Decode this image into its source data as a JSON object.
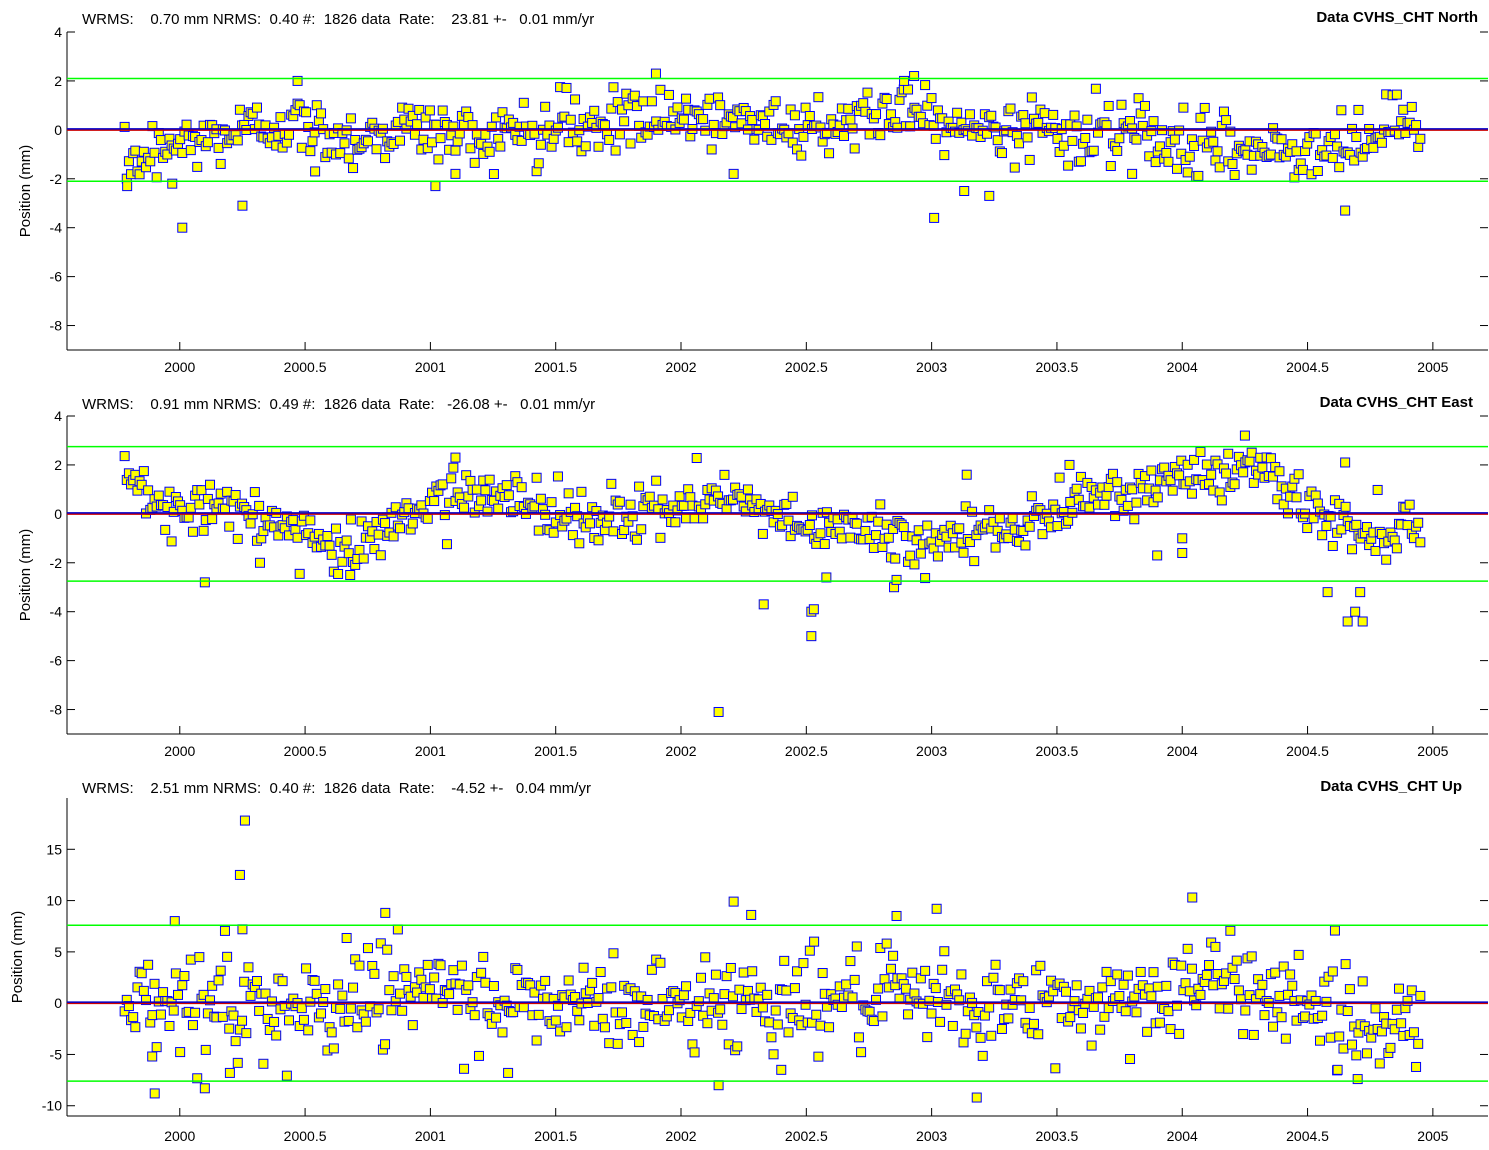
{
  "chart_data": [
    {
      "type": "scatter",
      "title": "Data CVHS_CHT North",
      "stats_text": "WRMS:    0.70 mm NRMS:  0.40 #:  1826 data  Rate:    23.81 +-   0.01 mm/yr",
      "ylabel": "Position (mm)",
      "xlim": [
        1999.55,
        2005.22
      ],
      "ylim": [
        -9,
        4
      ],
      "xticks": [
        2000,
        2000.5,
        2001,
        2001.5,
        2002,
        2002.5,
        2003,
        2003.5,
        2004,
        2004.5,
        2005
      ],
      "xtick_labels": [
        "2000",
        "2000.5",
        "2001",
        "2001.5",
        "2002",
        "2002.5",
        "2003",
        "2003.5",
        "2004",
        "2004.5",
        "2005"
      ],
      "yticks": [
        4,
        2,
        0,
        -2,
        -4,
        -6,
        -8
      ],
      "ytick_labels": [
        "4",
        "2",
        "0",
        "-2",
        "-4",
        "-6",
        "-8"
      ],
      "threshold_lines": [
        2.1,
        -2.1
      ],
      "zero_line": 0,
      "noise_sd": 0.62,
      "trend": [
        [
          1999.78,
          -1.6
        ],
        [
          1999.9,
          -0.8
        ],
        [
          2000.1,
          -0.4
        ],
        [
          2000.4,
          0.3
        ],
        [
          2000.7,
          -0.4
        ],
        [
          2000.9,
          0.1
        ],
        [
          2001.2,
          -0.3
        ],
        [
          2001.5,
          0.2
        ],
        [
          2001.8,
          0.4
        ],
        [
          2002.1,
          0.4
        ],
        [
          2002.5,
          0.2
        ],
        [
          2002.95,
          0.9
        ],
        [
          2003.15,
          0.1
        ],
        [
          2003.6,
          0.0
        ],
        [
          2003.9,
          -0.3
        ],
        [
          2004.3,
          -0.9
        ],
        [
          2004.6,
          -0.9
        ],
        [
          2004.95,
          0.3
        ]
      ],
      "outliers": [
        [
          1999.79,
          -2.3
        ],
        [
          1999.97,
          -2.2
        ],
        [
          2000.01,
          -4.0
        ],
        [
          2000.25,
          -3.1
        ],
        [
          2000.47,
          2.0
        ],
        [
          2000.54,
          -1.7
        ],
        [
          2001.02,
          -2.3
        ],
        [
          2001.1,
          -1.8
        ],
        [
          2001.9,
          2.3
        ],
        [
          2002.21,
          -1.8
        ],
        [
          2002.93,
          2.2
        ],
        [
          2002.89,
          2.0
        ],
        [
          2003.01,
          -3.6
        ],
        [
          2003.13,
          -2.5
        ],
        [
          2003.23,
          -2.7
        ],
        [
          2003.8,
          -1.8
        ],
        [
          2004.65,
          -3.3
        ]
      ]
    },
    {
      "type": "scatter",
      "title": "Data CVHS_CHT East",
      "stats_text": "WRMS:    0.91 mm NRMS:  0.49 #:  1826 data  Rate:   -26.08 +-   0.01 mm/yr",
      "ylabel": "Position (mm)",
      "xlim": [
        1999.55,
        2005.22
      ],
      "ylim": [
        -9,
        4
      ],
      "xticks": [
        2000,
        2000.5,
        2001,
        2001.5,
        2002,
        2002.5,
        2003,
        2003.5,
        2004,
        2004.5,
        2005
      ],
      "xtick_labels": [
        "2000",
        "2000.5",
        "2001",
        "2001.5",
        "2002",
        "2002.5",
        "2003",
        "2003.5",
        "2004",
        "2004.5",
        "2005"
      ],
      "yticks": [
        4,
        2,
        0,
        -2,
        -4,
        -6,
        -8
      ],
      "ytick_labels": [
        "4",
        "2",
        "0",
        "-2",
        "-4",
        "-6",
        "-8"
      ],
      "threshold_lines": [
        2.75,
        -2.75
      ],
      "zero_line": 0,
      "noise_sd": 0.55,
      "trend": [
        [
          1999.78,
          1.6
        ],
        [
          1999.95,
          0.5
        ],
        [
          2000.2,
          0.0
        ],
        [
          2000.5,
          -0.8
        ],
        [
          2000.7,
          -1.5
        ],
        [
          2000.85,
          -0.2
        ],
        [
          2001.1,
          0.9
        ],
        [
          2001.3,
          1.0
        ],
        [
          2001.45,
          0.1
        ],
        [
          2001.7,
          -0.3
        ],
        [
          2002.0,
          0.3
        ],
        [
          2002.2,
          0.5
        ],
        [
          2002.5,
          -0.5
        ],
        [
          2002.8,
          -0.8
        ],
        [
          2002.95,
          -1.1
        ],
        [
          2003.15,
          -0.8
        ],
        [
          2003.45,
          -0.3
        ],
        [
          2003.65,
          0.6
        ],
        [
          2003.9,
          1.4
        ],
        [
          2004.15,
          1.6
        ],
        [
          2004.3,
          2.0
        ],
        [
          2004.45,
          0.6
        ],
        [
          2004.7,
          -0.8
        ],
        [
          2004.95,
          -0.4
        ]
      ],
      "outliers": [
        [
          2000.1,
          -2.8
        ],
        [
          2000.32,
          -2.0
        ],
        [
          2000.68,
          -2.5
        ],
        [
          2001.1,
          2.3
        ],
        [
          2002.15,
          -8.1
        ],
        [
          2002.33,
          -3.7
        ],
        [
          2002.52,
          -4.0
        ],
        [
          2002.53,
          -3.9
        ],
        [
          2002.52,
          -5.0
        ],
        [
          2002.58,
          -2.6
        ],
        [
          2002.85,
          -3.0
        ],
        [
          2002.86,
          -2.7
        ],
        [
          2003.14,
          1.6
        ],
        [
          2003.55,
          2.0
        ],
        [
          2003.9,
          -1.7
        ],
        [
          2004.0,
          -1.0
        ],
        [
          2004.0,
          -1.6
        ],
        [
          2004.25,
          3.2
        ],
        [
          2004.58,
          -3.2
        ],
        [
          2004.66,
          -4.4
        ],
        [
          2004.69,
          -4.0
        ],
        [
          2004.72,
          -4.4
        ],
        [
          2004.71,
          -3.2
        ],
        [
          2004.65,
          2.1
        ]
      ]
    },
    {
      "type": "scatter",
      "title": "Data CVHS_CHT Up",
      "stats_text": "WRMS:    2.51 mm NRMS:  0.40 #:  1826 data  Rate:    -4.52 +-   0.04 mm/yr",
      "ylabel": "Position (mm)",
      "xlim": [
        1999.55,
        2005.22
      ],
      "ylim": [
        -11,
        20
      ],
      "xticks": [
        2000,
        2000.5,
        2001,
        2001.5,
        2002,
        2002.5,
        2003,
        2003.5,
        2004,
        2004.5,
        2005
      ],
      "xtick_labels": [
        "2000",
        "2000.5",
        "2001",
        "2001.5",
        "2002",
        "2002.5",
        "2003",
        "2003.5",
        "2004",
        "2004.5",
        "2005"
      ],
      "yticks": [
        15,
        10,
        5,
        0,
        -5,
        -10
      ],
      "ytick_labels": [
        "15",
        "10",
        "5",
        "0",
        "-5",
        "-10"
      ],
      "threshold_lines": [
        7.6,
        -7.6
      ],
      "zero_line": 0,
      "noise_sd": 2.3,
      "trend": [
        [
          1999.78,
          0.5
        ],
        [
          2000.3,
          0.0
        ],
        [
          2000.6,
          -0.5
        ],
        [
          2001.0,
          0.8
        ],
        [
          2001.5,
          -0.3
        ],
        [
          2002.0,
          0.0
        ],
        [
          2002.5,
          0.5
        ],
        [
          2003.0,
          0.0
        ],
        [
          2003.5,
          -0.5
        ],
        [
          2003.9,
          1.0
        ],
        [
          2004.2,
          2.0
        ],
        [
          2004.5,
          0.5
        ],
        [
          2004.75,
          -2.5
        ],
        [
          2004.95,
          -1.0
        ]
      ],
      "outliers": [
        [
          2000.24,
          12.5
        ],
        [
          2000.26,
          17.8
        ],
        [
          2000.25,
          7.2
        ],
        [
          1999.98,
          8.0
        ],
        [
          2000.82,
          8.8
        ],
        [
          2002.21,
          9.9
        ],
        [
          2002.28,
          8.6
        ],
        [
          2002.86,
          8.5
        ],
        [
          2003.02,
          9.2
        ],
        [
          2004.04,
          10.3
        ],
        [
          2000.1,
          -8.3
        ],
        [
          2000.2,
          -6.8
        ],
        [
          1999.9,
          -8.8
        ],
        [
          2002.15,
          -8.0
        ],
        [
          2003.18,
          -9.2
        ],
        [
          2004.7,
          -7.4
        ],
        [
          2004.62,
          -6.5
        ],
        [
          2002.4,
          -6.5
        ],
        [
          2001.31,
          -6.8
        ],
        [
          1999.89,
          -5.2
        ]
      ]
    }
  ],
  "colors": {
    "marker_fill": "#ffff00",
    "marker_edge": "#0000ff",
    "threshold_line": "#00ff00",
    "fit_line": "#0000cc",
    "zero_line": "#cc0000"
  }
}
